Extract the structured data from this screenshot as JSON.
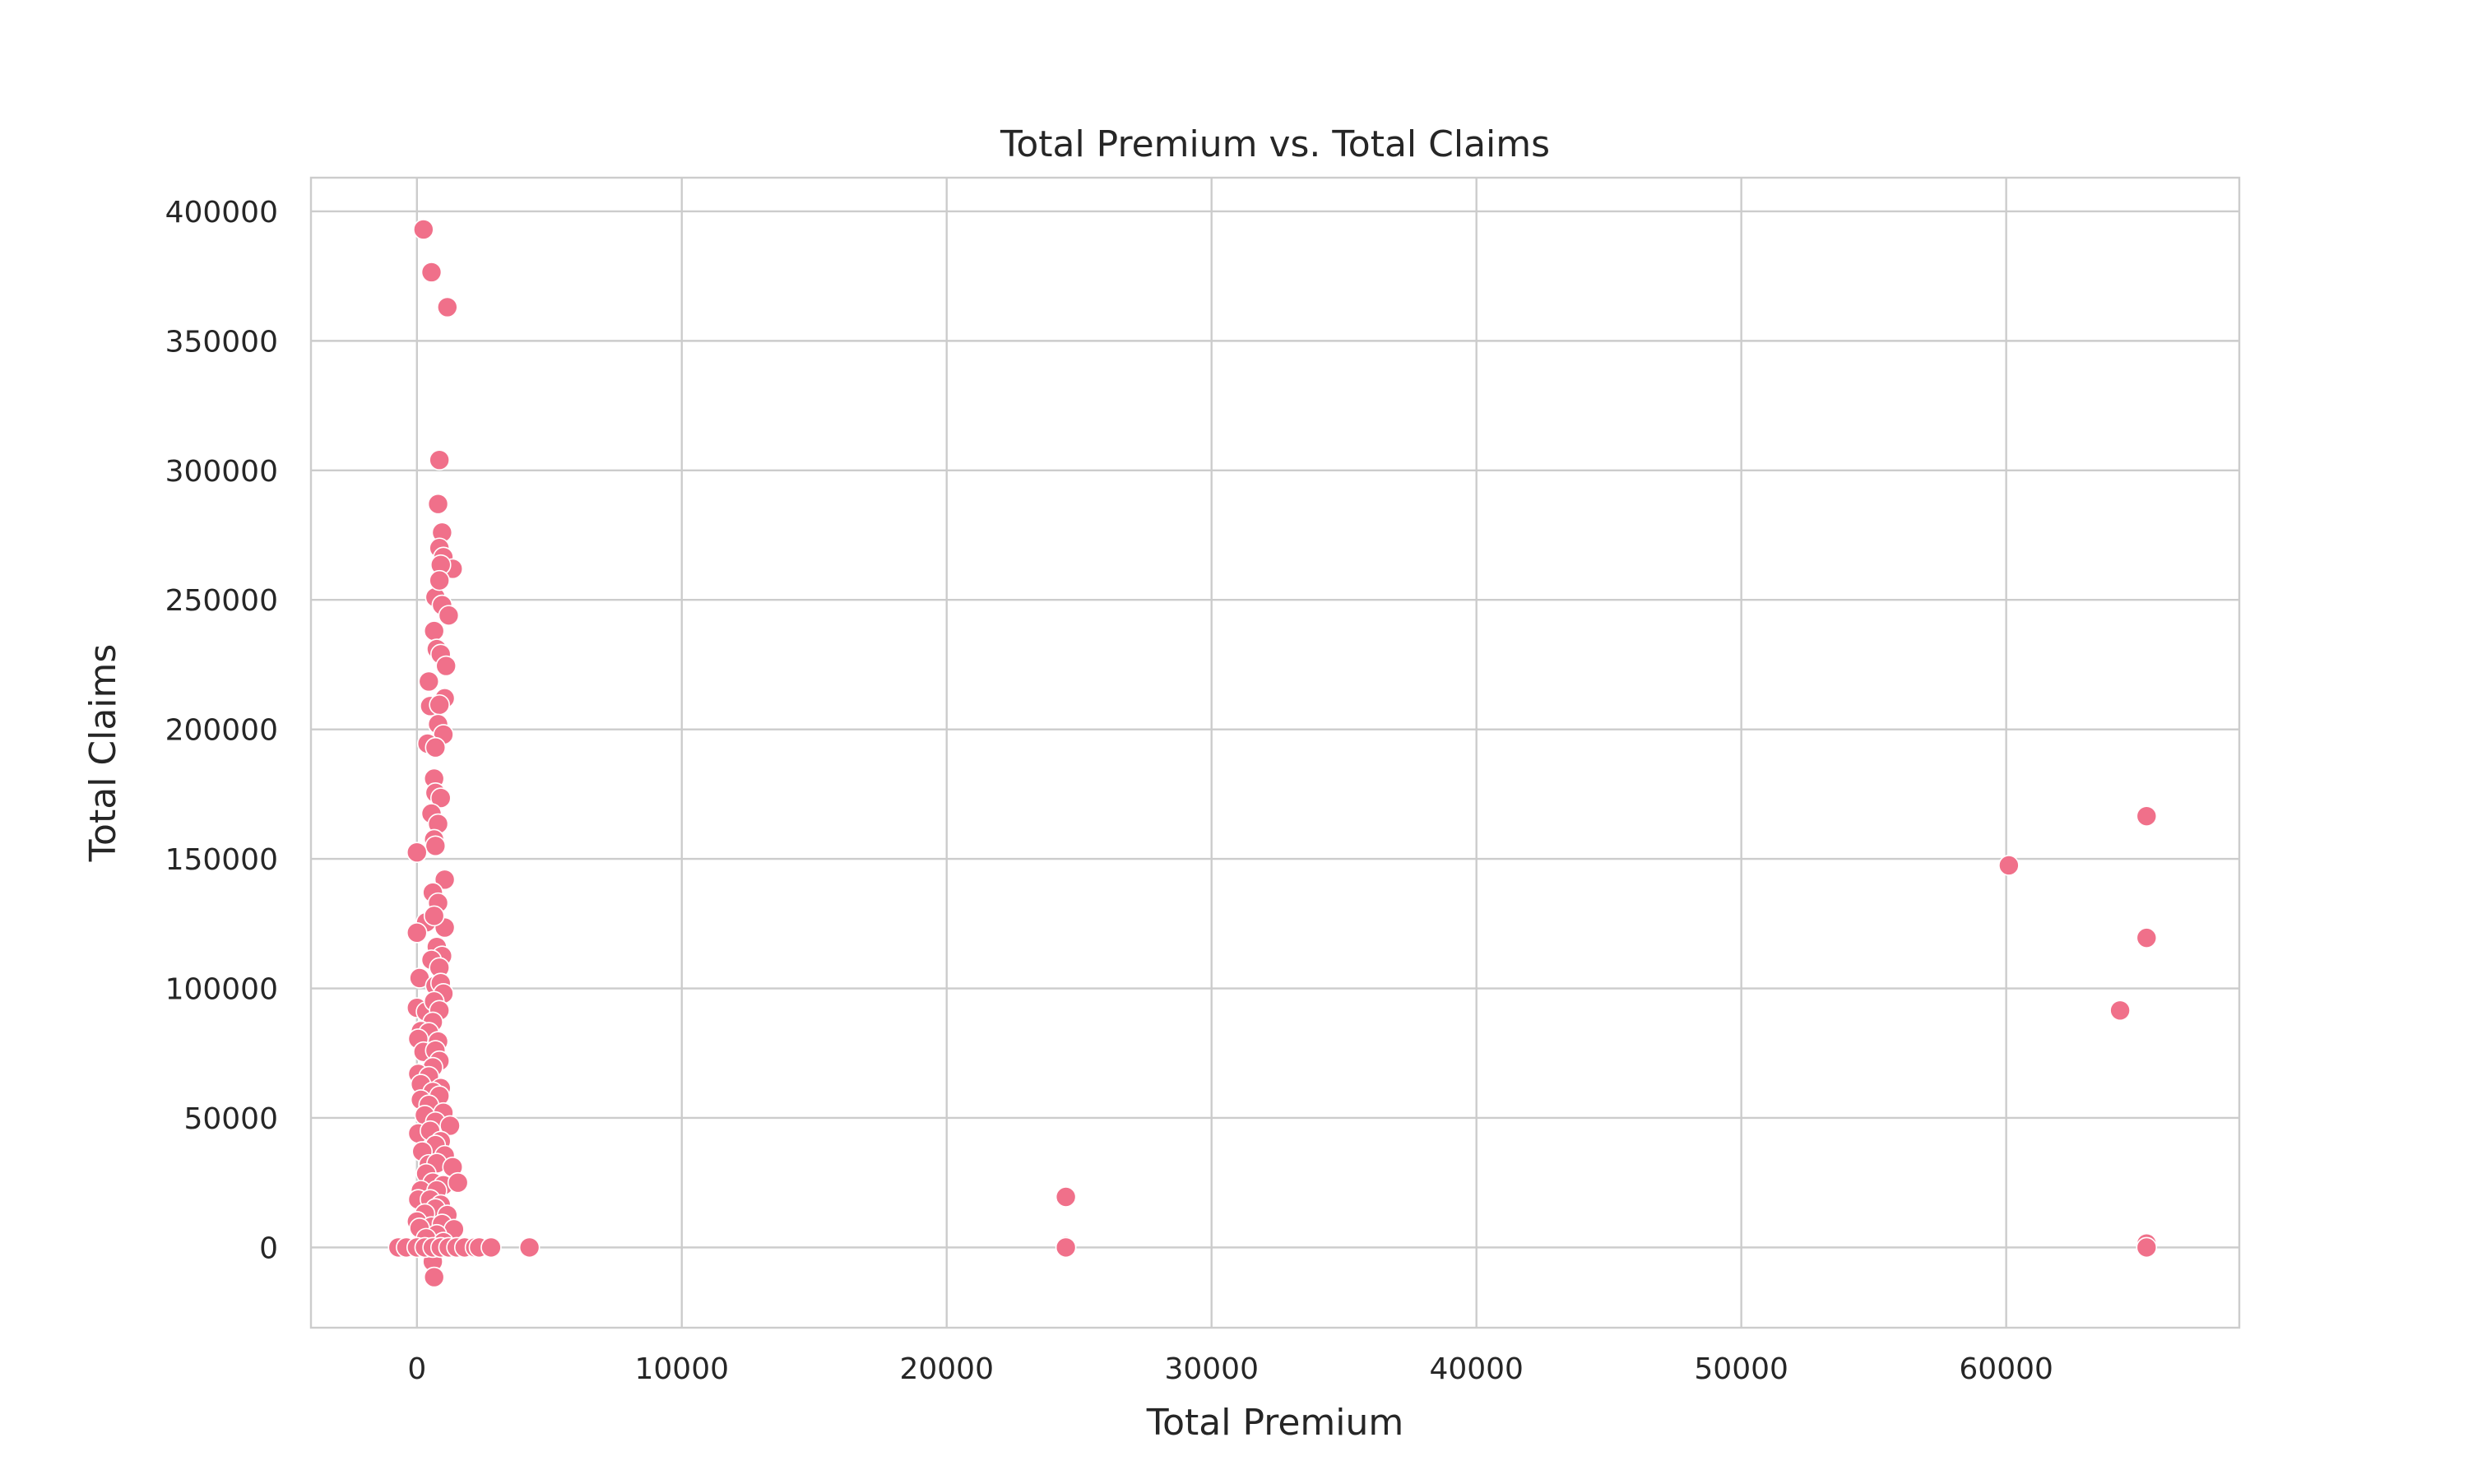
{
  "chart_data": {
    "type": "scatter",
    "title": "Total Premium vs. Total Claims",
    "xlabel": "Total Premium",
    "ylabel": "Total Claims",
    "xlim": [
      -4000,
      68800
    ],
    "ylim": [
      -31000,
      413000
    ],
    "xticks": [
      0,
      10000,
      20000,
      30000,
      40000,
      50000,
      60000
    ],
    "yticks": [
      0,
      50000,
      100000,
      150000,
      200000,
      250000,
      300000,
      350000,
      400000
    ],
    "grid": true,
    "legend": "none",
    "marker_color": "#f0708a",
    "series": [
      {
        "points": [
          [
            250,
            393000
          ],
          [
            550,
            376500
          ],
          [
            1150,
            363000
          ],
          [
            850,
            304000
          ],
          [
            800,
            287000
          ],
          [
            950,
            276000
          ],
          [
            850,
            270000
          ],
          [
            1000,
            266500
          ],
          [
            1350,
            262000
          ],
          [
            900,
            263500
          ],
          [
            700,
            251000
          ],
          [
            850,
            257500
          ],
          [
            950,
            248000
          ],
          [
            1200,
            244000
          ],
          [
            650,
            238000
          ],
          [
            750,
            231000
          ],
          [
            900,
            229000
          ],
          [
            1100,
            224500
          ],
          [
            450,
            218500
          ],
          [
            1050,
            212000
          ],
          [
            500,
            209000
          ],
          [
            850,
            209500
          ],
          [
            800,
            202000
          ],
          [
            1000,
            198000
          ],
          [
            400,
            194500
          ],
          [
            700,
            193000
          ],
          [
            650,
            181000
          ],
          [
            700,
            175500
          ],
          [
            900,
            173500
          ],
          [
            550,
            167500
          ],
          [
            800,
            163500
          ],
          [
            650,
            157500
          ],
          [
            700,
            155000
          ],
          [
            0,
            152500
          ],
          [
            1050,
            142000
          ],
          [
            600,
            137000
          ],
          [
            800,
            133000
          ],
          [
            350,
            125500
          ],
          [
            1050,
            123500
          ],
          [
            650,
            128000
          ],
          [
            0,
            121500
          ],
          [
            750,
            116000
          ],
          [
            950,
            112500
          ],
          [
            550,
            111000
          ],
          [
            850,
            108000
          ],
          [
            100,
            104000
          ],
          [
            700,
            101000
          ],
          [
            900,
            102000
          ],
          [
            1000,
            98000
          ],
          [
            0,
            92500
          ],
          [
            350,
            91000
          ],
          [
            650,
            95000
          ],
          [
            850,
            91500
          ],
          [
            600,
            87000
          ],
          [
            150,
            83500
          ],
          [
            450,
            83000
          ],
          [
            800,
            79500
          ],
          [
            50,
            80500
          ],
          [
            250,
            75500
          ],
          [
            700,
            76000
          ],
          [
            850,
            72000
          ],
          [
            600,
            69500
          ],
          [
            50,
            67000
          ],
          [
            450,
            66000
          ],
          [
            900,
            61500
          ],
          [
            150,
            63000
          ],
          [
            600,
            60000
          ],
          [
            850,
            58500
          ],
          [
            150,
            57000
          ],
          [
            450,
            55000
          ],
          [
            1000,
            52000
          ],
          [
            300,
            51000
          ],
          [
            700,
            48500
          ],
          [
            1250,
            47000
          ],
          [
            50,
            44000
          ],
          [
            500,
            45000
          ],
          [
            900,
            41000
          ],
          [
            700,
            39500
          ],
          [
            200,
            37000
          ],
          [
            1050,
            35500
          ],
          [
            450,
            32000
          ],
          [
            750,
            32500
          ],
          [
            1350,
            31000
          ],
          [
            350,
            28500
          ],
          [
            600,
            25000
          ],
          [
            1000,
            24000
          ],
          [
            1550,
            25000
          ],
          [
            150,
            22000
          ],
          [
            750,
            22000
          ],
          [
            50,
            18500
          ],
          [
            500,
            18500
          ],
          [
            900,
            16500
          ],
          [
            700,
            15000
          ],
          [
            300,
            13000
          ],
          [
            1150,
            12500
          ],
          [
            0,
            10000
          ],
          [
            550,
            8000
          ],
          [
            950,
            9000
          ],
          [
            1400,
            7000
          ],
          [
            100,
            7500
          ],
          [
            750,
            5000
          ],
          [
            350,
            3500
          ],
          [
            1000,
            2000
          ],
          [
            600,
            -5500
          ],
          [
            650,
            -11500
          ],
          [
            -700,
            0
          ],
          [
            -400,
            0
          ],
          [
            0,
            0
          ],
          [
            300,
            0
          ],
          [
            600,
            0
          ],
          [
            900,
            0
          ],
          [
            1200,
            0
          ],
          [
            1500,
            0
          ],
          [
            1800,
            0
          ],
          [
            2200,
            0
          ],
          [
            2350,
            0
          ],
          [
            2800,
            0
          ],
          [
            4250,
            0
          ],
          [
            24500,
            19500
          ],
          [
            24500,
            500
          ],
          [
            24500,
            0
          ],
          [
            60100,
            147500
          ],
          [
            64300,
            91500
          ],
          [
            65300,
            166500
          ],
          [
            65300,
            119500
          ],
          [
            65300,
            1500
          ],
          [
            65300,
            0
          ]
        ]
      }
    ]
  }
}
